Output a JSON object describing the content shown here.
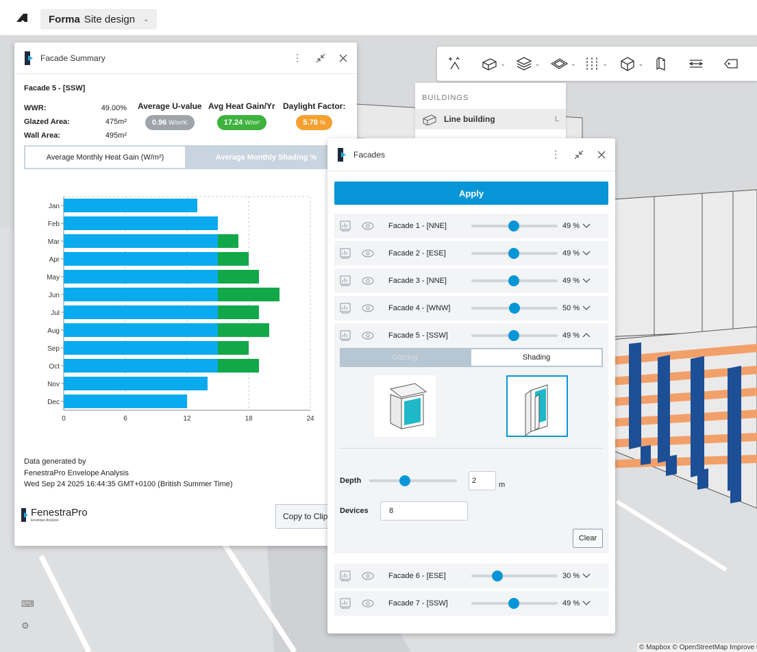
{
  "app": {
    "project_bold": "Forma",
    "project_rest": "Site design"
  },
  "buildings_menu": {
    "header": "BUILDINGS",
    "item_label": "Line building",
    "item_key": "L"
  },
  "summary": {
    "title": "Facade Summary",
    "facade_title": "Facade 5 - [SSW]",
    "stats": [
      {
        "label": "WWR:",
        "value": "49.00%"
      },
      {
        "label": "Glazed Area:",
        "value": "475m²"
      },
      {
        "label": "Wall Area:",
        "value": "495m²"
      }
    ],
    "kpis": [
      {
        "label": "Average U-value",
        "value": "0.96",
        "unit": "W/m²K",
        "color": "#9ea4a9"
      },
      {
        "label": "Avg Heat Gain/Yr",
        "value": "17.24",
        "unit": "W/m²",
        "color": "#3db33d"
      },
      {
        "label": "Daylight Factor:",
        "value": "5.78",
        "unit": "%",
        "color": "#f5a030"
      }
    ],
    "tab_active": "Average Monthly Heat Gain (W/m²)",
    "tab_inactive": "Average Monthly Shading %",
    "footer": [
      "Data generated by",
      "FenestraPro Envelope Analysis",
      "Wed Sep 24 2025 16:44:35 GMT+0100 (British Summer Time)"
    ],
    "brand": "FenestraPro",
    "brand_sub": "Envelope Analysis",
    "copy_label": "Copy to Clipboard"
  },
  "chart_data": {
    "type": "bar",
    "orientation": "horizontal",
    "stacked": true,
    "categories": [
      "Jan",
      "Feb",
      "Mar",
      "Apr",
      "May",
      "Jun",
      "Jul",
      "Aug",
      "Sep",
      "Oct",
      "Nov",
      "Dec"
    ],
    "series": [
      {
        "color": "#0aabee",
        "values": [
          13,
          15,
          15,
          15,
          15,
          15,
          15,
          15,
          15,
          15,
          14,
          12
        ]
      },
      {
        "color": "#12a84a",
        "values": [
          0,
          0,
          2,
          3,
          4,
          6,
          4,
          5,
          3,
          4,
          0,
          0
        ]
      }
    ],
    "xlim": [
      0,
      24
    ],
    "xticks": [
      0,
      6,
      12,
      18,
      24
    ],
    "grid": true
  },
  "facades": {
    "title": "Facades",
    "apply_label": "Apply",
    "rows": [
      {
        "label": "Facade 1 - [NNE]",
        "pct": "49 %",
        "level": 0.49
      },
      {
        "label": "Facade 2 - [ESE]",
        "pct": "49 %",
        "level": 0.49
      },
      {
        "label": "Facade 3 - [NNE]",
        "pct": "49 %",
        "level": 0.49
      },
      {
        "label": "Facade 4 - [WNW]",
        "pct": "50 %",
        "level": 0.5
      },
      {
        "label": "Facade 5 - [SSW]",
        "pct": "49 %",
        "level": 0.49
      },
      {
        "label": "Facade 6 - [ESE]",
        "pct": "30 %",
        "level": 0.3
      },
      {
        "label": "Facade 7 - [SSW]",
        "pct": "49 %",
        "level": 0.49
      }
    ],
    "seg_glazing": "Glazing",
    "seg_shading": "Shading",
    "depth_label": "Depth",
    "depth_value": "2",
    "depth_unit": "m",
    "depth_level": 0.41,
    "devices_label": "Devices",
    "devices_value": "8",
    "clear_label": "Clear"
  },
  "map_credit": "© Mapbox © OpenStreetMap Improve this map"
}
